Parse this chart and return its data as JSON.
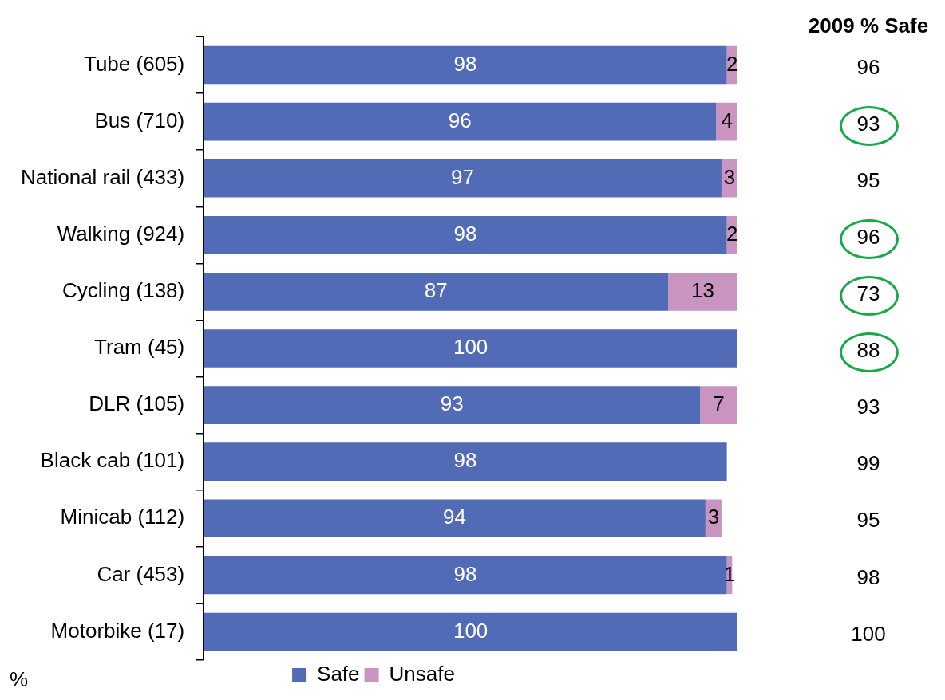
{
  "chart_data": {
    "type": "bar",
    "orientation": "horizontal",
    "stacked": true,
    "categories": [
      "Tube (605)",
      "Bus (710)",
      "National rail (433)",
      "Walking (924)",
      "Cycling (138)",
      "Tram (45)",
      "DLR (105)",
      "Black cab (101)",
      "Minicab (112)",
      "Car (453)",
      "Motorbike (17)"
    ],
    "series": [
      {
        "name": "Safe",
        "color": "#526bb6",
        "values": [
          98,
          96,
          97,
          98,
          87,
          100,
          93,
          98,
          94,
          98,
          100
        ]
      },
      {
        "name": "Unsafe",
        "color": "#c994c0",
        "values": [
          2,
          4,
          3,
          2,
          13,
          null,
          7,
          null,
          3,
          1,
          null
        ]
      }
    ],
    "xlim": [
      0,
      100
    ],
    "tick_labels": "y",
    "grid": false,
    "legend": "bottom",
    "data_labels": true,
    "annotations": [
      "2009 % Safe",
      "%",
      "96",
      "93",
      "95",
      "96",
      "73",
      "88",
      "93",
      "99",
      "95",
      "98",
      "100"
    ]
  }
}
